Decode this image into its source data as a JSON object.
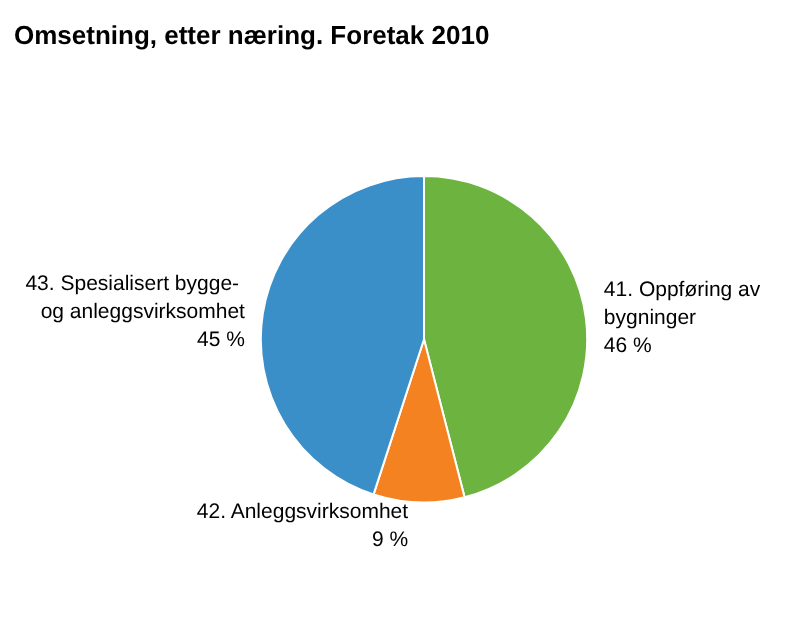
{
  "chart_data": {
    "type": "pie",
    "title": "Omsetning, etter næring. Foretak 2010",
    "categories": [
      "41. Oppføring av bygninger",
      "42. Anleggsvirksomhet",
      "43. Spesialisert bygge- og anleggsvirksomhet"
    ],
    "values": [
      46,
      9,
      45
    ],
    "colors": [
      "#6db33f",
      "#f58220",
      "#3a8fc9"
    ],
    "value_labels": [
      "46 %",
      "9 %",
      "45 %"
    ],
    "legend": false
  }
}
